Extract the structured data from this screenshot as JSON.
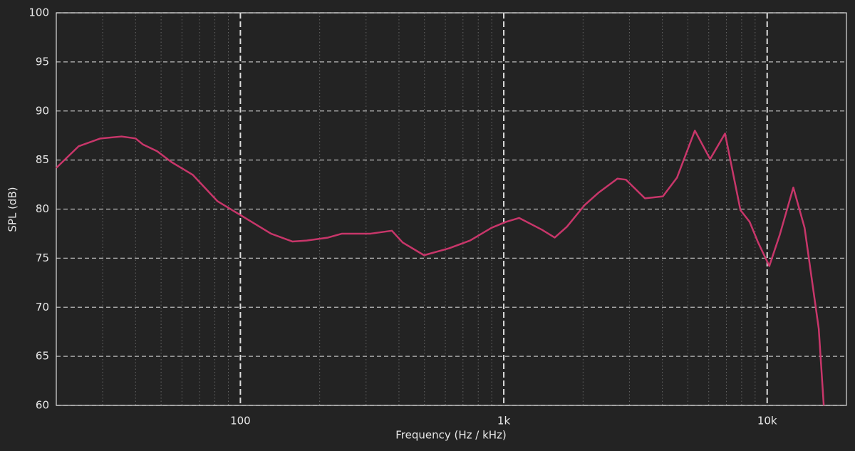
{
  "chart_data": {
    "type": "line",
    "xlabel": "Frequency (Hz / kHz)",
    "ylabel": "SPL (dB)",
    "x": [
      20,
      24.3,
      29.4,
      35.4,
      40,
      42.6,
      48.3,
      54.7,
      65.9,
      81.9,
      100,
      130.7,
      157.5,
      178.5,
      215,
      243,
      312,
      376,
      413,
      498,
      619,
      745,
      899,
      1019,
      1143,
      1396,
      1561,
      1736,
      2026,
      2296,
      2700,
      2909,
      3436,
      4018,
      4545,
      5315,
      6074,
      6919,
      7917,
      8580,
      9240,
      10190,
      11170,
      12570,
      13870,
      15700,
      16400
    ],
    "series": [
      {
        "name": "SPL",
        "color": "#c8366a",
        "values": [
          84.2,
          86.4,
          87.2,
          87.4,
          87.2,
          86.6,
          85.9,
          84.8,
          83.5,
          80.8,
          79.4,
          77.5,
          76.7,
          76.8,
          77.1,
          77.5,
          77.5,
          77.8,
          76.6,
          75.3,
          76.0,
          76.8,
          78.1,
          78.7,
          79.1,
          77.9,
          77.1,
          78.2,
          80.4,
          81.7,
          83.1,
          83.0,
          81.1,
          81.3,
          83.2,
          88.0,
          85.1,
          87.7,
          79.9,
          78.7,
          76.6,
          74.2,
          77.4,
          82.2,
          78.1,
          67.8,
          60.0
        ]
      }
    ],
    "xscale": "log",
    "xlim": [
      20,
      20000
    ],
    "ylim": [
      60,
      100
    ],
    "xticks": [
      {
        "value": 100,
        "label": "100"
      },
      {
        "value": 1000,
        "label": "1k"
      },
      {
        "value": 10000,
        "label": "10k"
      }
    ],
    "yticks": [
      60,
      65,
      70,
      75,
      80,
      85,
      90,
      95,
      100
    ],
    "grid": true
  }
}
